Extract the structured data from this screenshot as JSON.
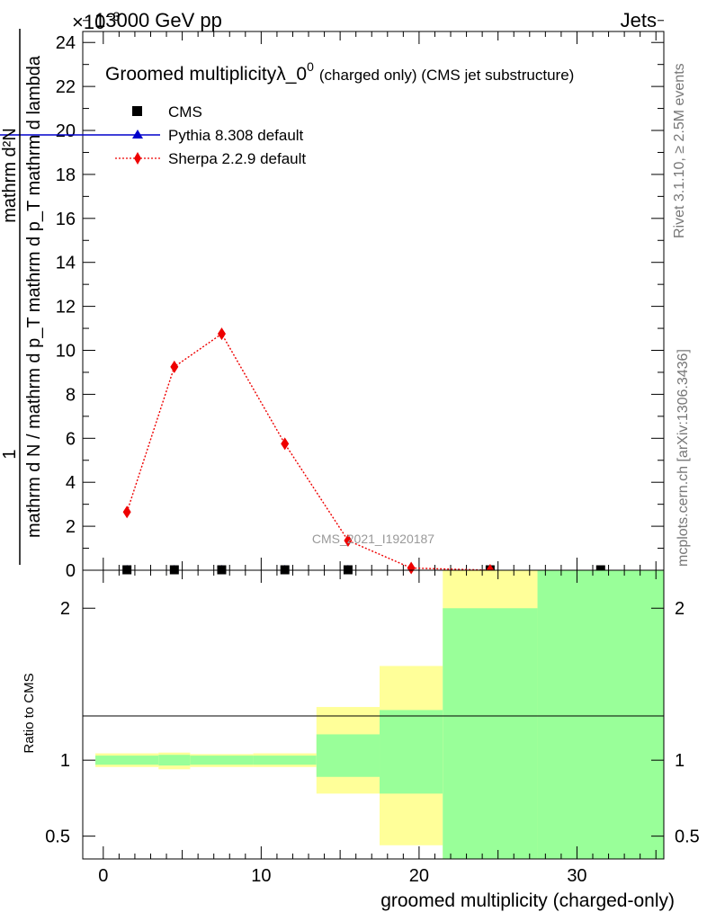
{
  "header": {
    "left": "13000 GeV pp",
    "right": "Jets",
    "multiplier": "×10",
    "multiplier_exp": "−3"
  },
  "plot_title": {
    "main": "Groomed multiplicityλ_0",
    "sup": "0",
    "tail": "(charged only) (CMS jet substructure)"
  },
  "side_labels": {
    "rivet": "Rivet 3.1.10, ≥ 2.5M events",
    "mcplots": "mcplots.cern.ch [arXiv:1306.3436]"
  },
  "watermark": "CMS_2021_I1920187",
  "main_ylabel": {
    "numerator": "1",
    "denominator": "mathrm d N / mathrm d p_T mathrm d p_T mathrm d lambda",
    "top": "mathrm d²N"
  },
  "ratio_ylabel": "Ratio to CMS",
  "xlabel": "groomed multiplicity (charged-only)",
  "legend": [
    {
      "label": "CMS",
      "color": "#000000",
      "marker": "square"
    },
    {
      "label": "Pythia 8.308 default",
      "color": "#0000cc",
      "marker": "triangle"
    },
    {
      "label": "Sherpa 2.2.9 default",
      "color": "#ee0000",
      "marker": "diamond"
    }
  ],
  "chart_data": {
    "type": "line",
    "x_ticks": [
      0,
      10,
      20,
      30
    ],
    "xlim": [
      -1.3,
      35.5
    ],
    "main": {
      "ylim": [
        0,
        24.5
      ],
      "y_ticks": [
        0,
        2,
        4,
        6,
        8,
        10,
        12,
        14,
        16,
        18,
        20,
        22,
        24
      ],
      "scale_note": "×10^-3",
      "series": [
        {
          "name": "CMS",
          "x": [
            1.5,
            4.5,
            7.5,
            11.5,
            15.5,
            24.5,
            31.5
          ],
          "values": [
            0.02,
            0.02,
            0.02,
            0.02,
            0.02,
            0.02,
            0.02
          ]
        },
        {
          "name": "Pythia 8.308 default",
          "x": [
            1.5,
            4.5,
            7.5,
            11.5,
            15.5
          ],
          "values": [
            0.0,
            0.0,
            0.0,
            0.0,
            0.0
          ]
        },
        {
          "name": "Sherpa 2.2.9 default",
          "x": [
            1.5,
            4.5,
            7.5,
            11.5,
            15.5,
            19.5,
            24.5
          ],
          "values": [
            2.65,
            9.25,
            10.75,
            5.75,
            1.35,
            0.1,
            0.0
          ]
        }
      ]
    },
    "ratio": {
      "ylim": [
        0.35,
        2.25
      ],
      "y_ticks": [
        0.5,
        1,
        2
      ],
      "reference_line": 1,
      "bands": [
        {
          "x0": -0.5,
          "x1": 3.5,
          "yellow": [
            0.955,
            1.045
          ],
          "green": [
            0.97,
            1.03
          ]
        },
        {
          "x0": 3.5,
          "x1": 5.5,
          "yellow": [
            0.94,
            1.05
          ],
          "green": [
            0.965,
            1.035
          ]
        },
        {
          "x0": 5.5,
          "x1": 9.5,
          "yellow": [
            0.955,
            1.04
          ],
          "green": [
            0.97,
            1.03
          ]
        },
        {
          "x0": 9.5,
          "x1": 13.5,
          "yellow": [
            0.955,
            1.045
          ],
          "green": [
            0.97,
            1.03
          ]
        },
        {
          "x0": 13.5,
          "x1": 17.5,
          "yellow": [
            0.78,
            1.35
          ],
          "green": [
            0.89,
            1.17
          ]
        },
        {
          "x0": 17.5,
          "x1": 21.5,
          "yellow": [
            0.44,
            1.62
          ],
          "green": [
            0.78,
            1.33
          ]
        },
        {
          "x0": 21.5,
          "x1": 27.5,
          "yellow": [
            0.35,
            2.25
          ],
          "green": [
            0.35,
            2.0
          ]
        },
        {
          "x0": 27.5,
          "x1": 35.5,
          "yellow": [
            0.35,
            2.25
          ],
          "green": [
            0.35,
            2.25
          ]
        }
      ]
    },
    "colors": {
      "yellow": "#ffff99",
      "green": "#99ff99",
      "sherpa": "#ee0000",
      "pythia": "#0000cc",
      "cms": "#000000"
    }
  }
}
